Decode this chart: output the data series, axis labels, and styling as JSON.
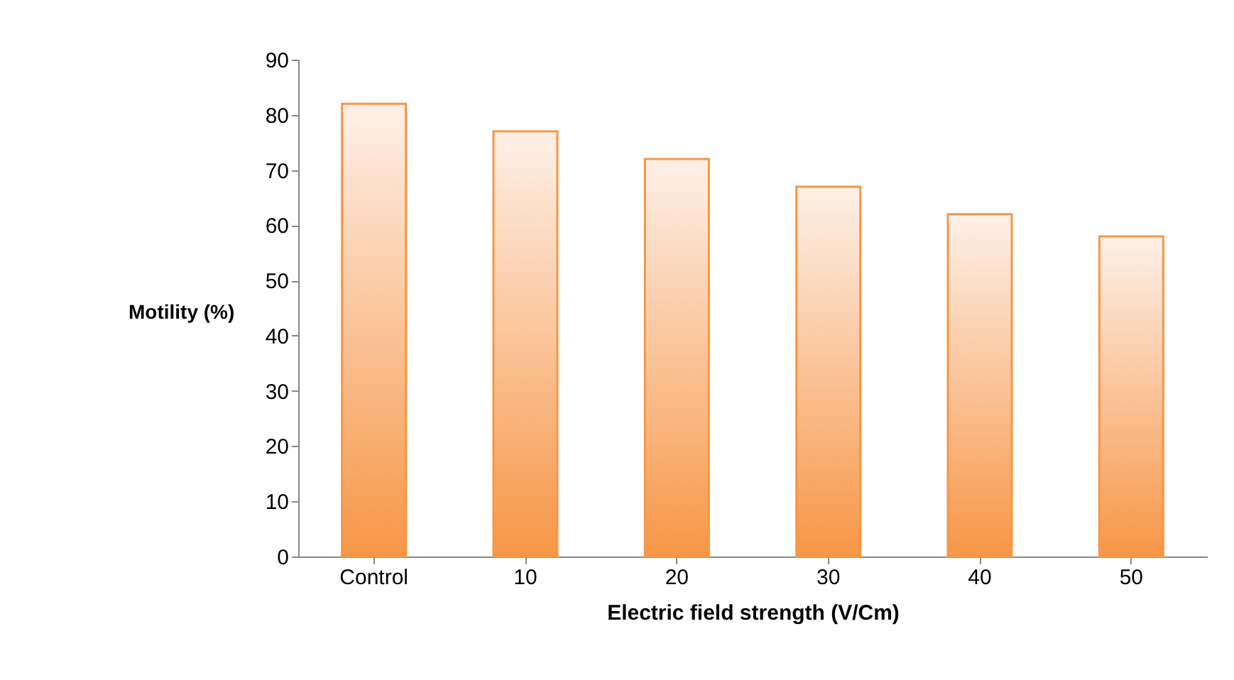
{
  "chart_data": {
    "type": "bar",
    "xlabel": "Electric field  strength  (V/Cm)",
    "ylabel": "Motility  (%)",
    "categories": [
      "Control",
      "10",
      "20",
      "30",
      "40",
      "50"
    ],
    "values": [
      82,
      77,
      72,
      67,
      62,
      58
    ],
    "color": "#f79646",
    "ylim": [
      0,
      90
    ],
    "yticks": [
      0,
      10,
      20,
      30,
      40,
      50,
      60,
      70,
      80,
      90
    ],
    "grid": false
  }
}
